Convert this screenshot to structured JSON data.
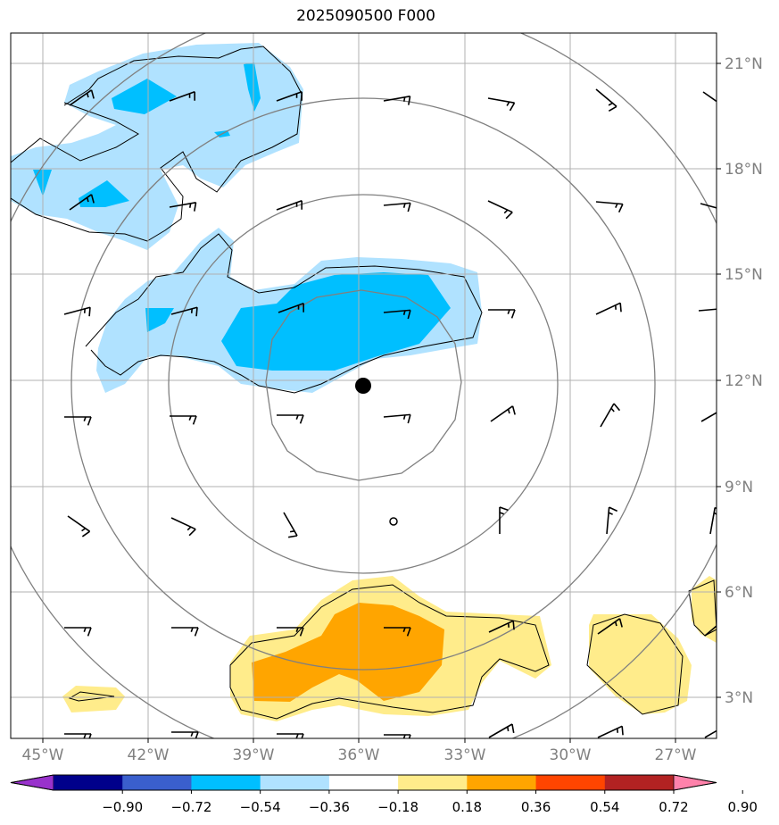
{
  "title": "2025090500 F000",
  "map": {
    "lat_labels": [
      {
        "id": "21",
        "text": "21°N"
      },
      {
        "id": "18",
        "text": "18°N"
      },
      {
        "id": "15",
        "text": "15°N"
      },
      {
        "id": "12",
        "text": "12°N"
      },
      {
        "id": "9",
        "text": "9°N"
      },
      {
        "id": "6",
        "text": "6°N"
      },
      {
        "id": "3",
        "text": "3°N"
      }
    ],
    "lon_labels": [
      {
        "id": "45",
        "text": "45°W"
      },
      {
        "id": "42",
        "text": "42°W"
      },
      {
        "id": "39",
        "text": "39°W"
      },
      {
        "id": "36",
        "text": "36°W"
      },
      {
        "id": "33",
        "text": "33°W"
      },
      {
        "id": "30",
        "text": "30°W"
      },
      {
        "id": "27",
        "text": "27°W"
      }
    ],
    "center_marker": {
      "lat": 11.8,
      "lon": -36.1
    },
    "range_rings_count": 4
  },
  "colorbar": {
    "ticks": [
      "−0.90",
      "−0.72",
      "−0.54",
      "−0.36",
      "−0.18",
      "0.18",
      "0.36",
      "0.54",
      "0.72",
      "0.90"
    ],
    "colors": [
      "#9932cc",
      "#00008b",
      "#3a5fcd",
      "#00bfff",
      "#b0e2ff",
      "#ffffff",
      "#ffec8b",
      "#ffa500",
      "#ff4500",
      "#b22222",
      "#ff82ab"
    ]
  },
  "palette": {
    "light_blue": "#b0e2ff",
    "blue": "#00bfff",
    "yellow": "#ffec8b",
    "orange": "#ffa500",
    "grid": "#b0b0b0",
    "ring": "#808080"
  }
}
